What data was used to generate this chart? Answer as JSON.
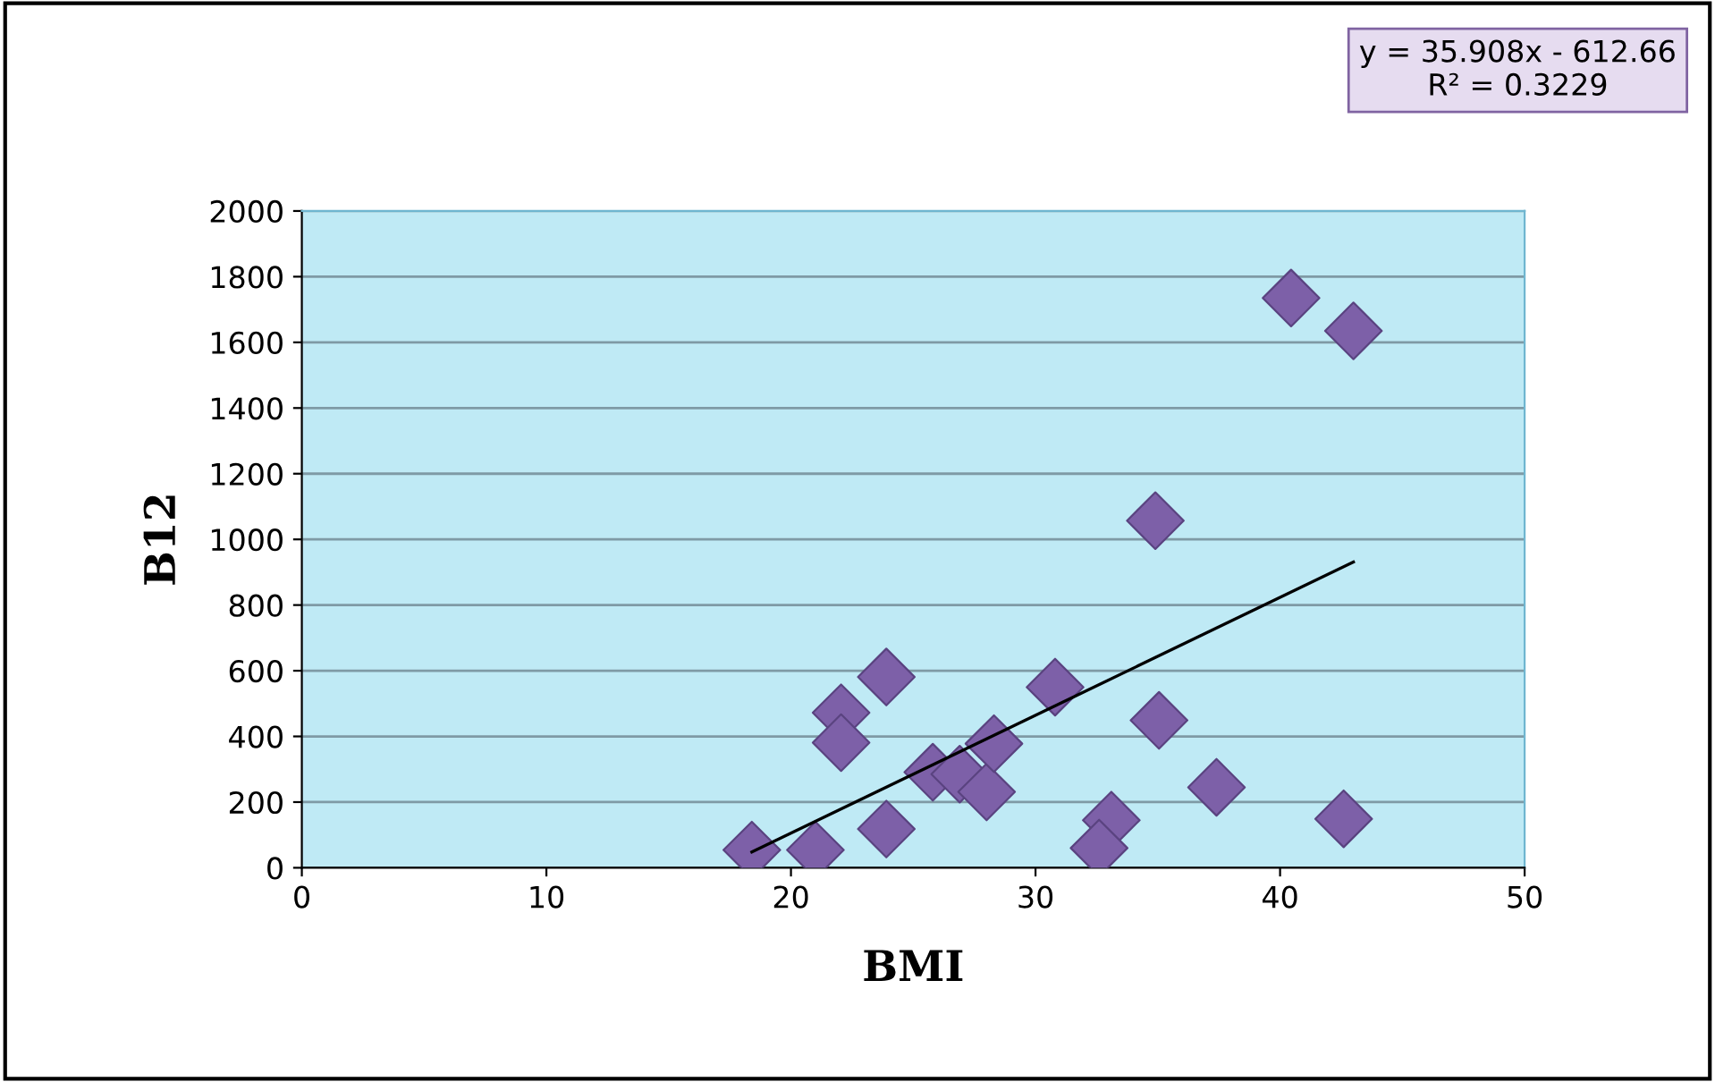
{
  "chart_data": {
    "type": "scatter",
    "xlabel": "BMI",
    "ylabel": "B12",
    "xlim": [
      0,
      50
    ],
    "xticks": [
      0,
      10,
      20,
      30,
      40,
      50
    ],
    "ylim": [
      0,
      2000
    ],
    "yticks": [
      0,
      200,
      400,
      600,
      800,
      1000,
      1200,
      1400,
      1600,
      1800,
      2000
    ],
    "grid": "y",
    "marker": "diamond",
    "series": [
      {
        "color": "#7d60a8",
        "x": [
          18.4,
          21.0,
          23.9,
          23.9,
          22.05,
          22.05,
          25.8,
          26.9,
          28.0,
          28.3,
          30.8,
          33.1,
          32.6,
          34.9,
          35.05,
          37.4,
          42.6,
          40.45,
          43.0
        ],
        "values": [
          54,
          54,
          118,
          581,
          472,
          381,
          291,
          285,
          231,
          378,
          550,
          145,
          60,
          1057,
          449,
          245,
          149,
          1735,
          1635
        ]
      },
      {
        "type": "line",
        "color": "#000000",
        "marker": "none",
        "x": [
          18.4,
          43.0
        ],
        "values": [
          48,
          931
        ]
      }
    ],
    "annotations": [
      "y = 35.908x - 612.66",
      "R² = 0.3229"
    ]
  }
}
